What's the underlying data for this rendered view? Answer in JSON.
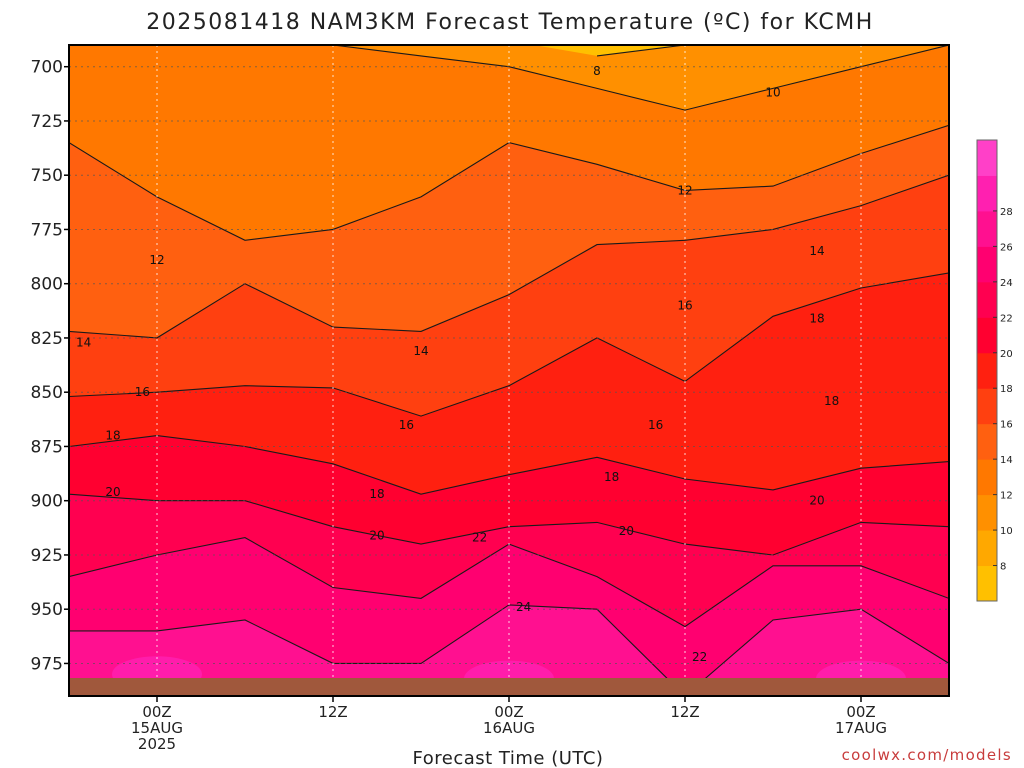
{
  "chart_data": {
    "type": "heatmap",
    "title": "2025081418 NAM3KM Forecast Temperature (ºC) for KCMH",
    "xlabel": "Forecast Time (UTC)",
    "credit": "coolwx.com/models",
    "y_axis": {
      "quantity": "pressure (hPa)",
      "ylim": [
        990,
        690
      ],
      "ticks": [
        "700",
        "725",
        "750",
        "775",
        "800",
        "825",
        "850",
        "875",
        "900",
        "925",
        "950",
        "975"
      ]
    },
    "x_axis": {
      "quantity": "forecast time (UTC)",
      "xlim": [
        "2025-08-14 18Z",
        "2025-08-17 06Z"
      ],
      "ticks": [
        {
          "time": "2025-08-15 00Z",
          "lines": [
            "00Z",
            "15AUG",
            "2025"
          ]
        },
        {
          "time": "2025-08-15 12Z",
          "lines": [
            "12Z"
          ]
        },
        {
          "time": "2025-08-16 00Z",
          "lines": [
            "00Z",
            "16AUG"
          ]
        },
        {
          "time": "2025-08-16 12Z",
          "lines": [
            "12Z"
          ]
        },
        {
          "time": "2025-08-17 00Z",
          "lines": [
            "00Z",
            "17AUG"
          ]
        }
      ]
    },
    "grid": true,
    "colorbar": {
      "placement": "right",
      "labels": [
        "8",
        "10",
        "12",
        "14",
        "16",
        "18",
        "20",
        "22",
        "24",
        "26",
        "28"
      ],
      "colors": [
        "#ffc000",
        "#ffa800",
        "#ff9000",
        "#ff7800",
        "#ff6010",
        "#ff4010",
        "#ff2010",
        "#ff0030",
        "#ff0050",
        "#ff0070",
        "#ff1090",
        "#ff20b0",
        "#ff40c8"
      ]
    },
    "ground_color": "#a0583c",
    "contour_levels": [
      8,
      10,
      12,
      14,
      16,
      18,
      20,
      22,
      24
    ],
    "isotherm_pressure_by_time": {
      "times": [
        "2025-08-14 18Z",
        "2025-08-15 00Z",
        "2025-08-15 06Z",
        "2025-08-15 12Z",
        "2025-08-15 18Z",
        "2025-08-16 00Z",
        "2025-08-16 06Z",
        "2025-08-16 12Z",
        "2025-08-16 18Z",
        "2025-08-17 00Z",
        "2025-08-17 06Z"
      ],
      "series": [
        {
          "level": 8,
          "pressure": [
            null,
            null,
            null,
            null,
            null,
            null,
            695,
            690,
            690,
            null,
            null
          ]
        },
        {
          "level": 10,
          "pressure": [
            690,
            690,
            690,
            690,
            695,
            700,
            710,
            720,
            710,
            700,
            690
          ]
        },
        {
          "level": 12,
          "pressure": [
            735,
            760,
            780,
            775,
            760,
            735,
            745,
            757,
            755,
            740,
            727
          ]
        },
        {
          "level": 14,
          "pressure": [
            822,
            825,
            800,
            820,
            822,
            805,
            782,
            780,
            775,
            764,
            750
          ]
        },
        {
          "level": 16,
          "pressure": [
            852,
            850,
            847,
            848,
            861,
            847,
            825,
            845,
            815,
            802,
            795
          ]
        },
        {
          "level": 18,
          "pressure": [
            875,
            870,
            875,
            883,
            897,
            888,
            880,
            890,
            895,
            885,
            882
          ]
        },
        {
          "level": 20,
          "pressure": [
            897,
            900,
            900,
            912,
            920,
            912,
            910,
            920,
            925,
            910,
            912
          ]
        },
        {
          "level": 22,
          "pressure": [
            935,
            925,
            917,
            940,
            945,
            920,
            935,
            958,
            930,
            930,
            945
          ]
        },
        {
          "level": 24,
          "pressure": [
            960,
            960,
            955,
            975,
            975,
            948,
            950,
            990,
            955,
            950,
            975
          ]
        }
      ]
    },
    "contour_labels": [
      {
        "text": "8",
        "time": "2025-08-16 06Z",
        "pressure": 702
      },
      {
        "text": "10",
        "time": "2025-08-16 18Z",
        "pressure": 712
      },
      {
        "text": "12",
        "time": "2025-08-16 12Z",
        "pressure": 757
      },
      {
        "text": "14",
        "time": "2025-08-16 21Z",
        "pressure": 785
      },
      {
        "text": "12",
        "time": "2025-08-15 00Z",
        "pressure": 789
      },
      {
        "text": "14",
        "time": "2025-08-14 19Z",
        "pressure": 827
      },
      {
        "text": "14",
        "time": "2025-08-15 18Z",
        "pressure": 831
      },
      {
        "text": "16",
        "time": "2025-08-16 12Z",
        "pressure": 810
      },
      {
        "text": "18",
        "time": "2025-08-16 21Z",
        "pressure": 816
      },
      {
        "text": "16",
        "time": "2025-08-14 23Z",
        "pressure": 850
      },
      {
        "text": "16",
        "time": "2025-08-15 17Z",
        "pressure": 865
      },
      {
        "text": "16",
        "time": "2025-08-16 10Z",
        "pressure": 865
      },
      {
        "text": "18",
        "time": "2025-08-16 22Z",
        "pressure": 854
      },
      {
        "text": "18",
        "time": "2025-08-14 21Z",
        "pressure": 870
      },
      {
        "text": "18",
        "time": "2025-08-15 15Z",
        "pressure": 897
      },
      {
        "text": "18",
        "time": "2025-08-16 07Z",
        "pressure": 889
      },
      {
        "text": "20",
        "time": "2025-08-14 21Z",
        "pressure": 896
      },
      {
        "text": "20",
        "time": "2025-08-15 15Z",
        "pressure": 916
      },
      {
        "text": "22",
        "time": "2025-08-15 22Z",
        "pressure": 917
      },
      {
        "text": "20",
        "time": "2025-08-16 08Z",
        "pressure": 914
      },
      {
        "text": "20",
        "time": "2025-08-16 21Z",
        "pressure": 900
      },
      {
        "text": "24",
        "time": "2025-08-16 01Z",
        "pressure": 949
      },
      {
        "text": "22",
        "time": "2025-08-16 13Z",
        "pressure": 972
      }
    ]
  }
}
